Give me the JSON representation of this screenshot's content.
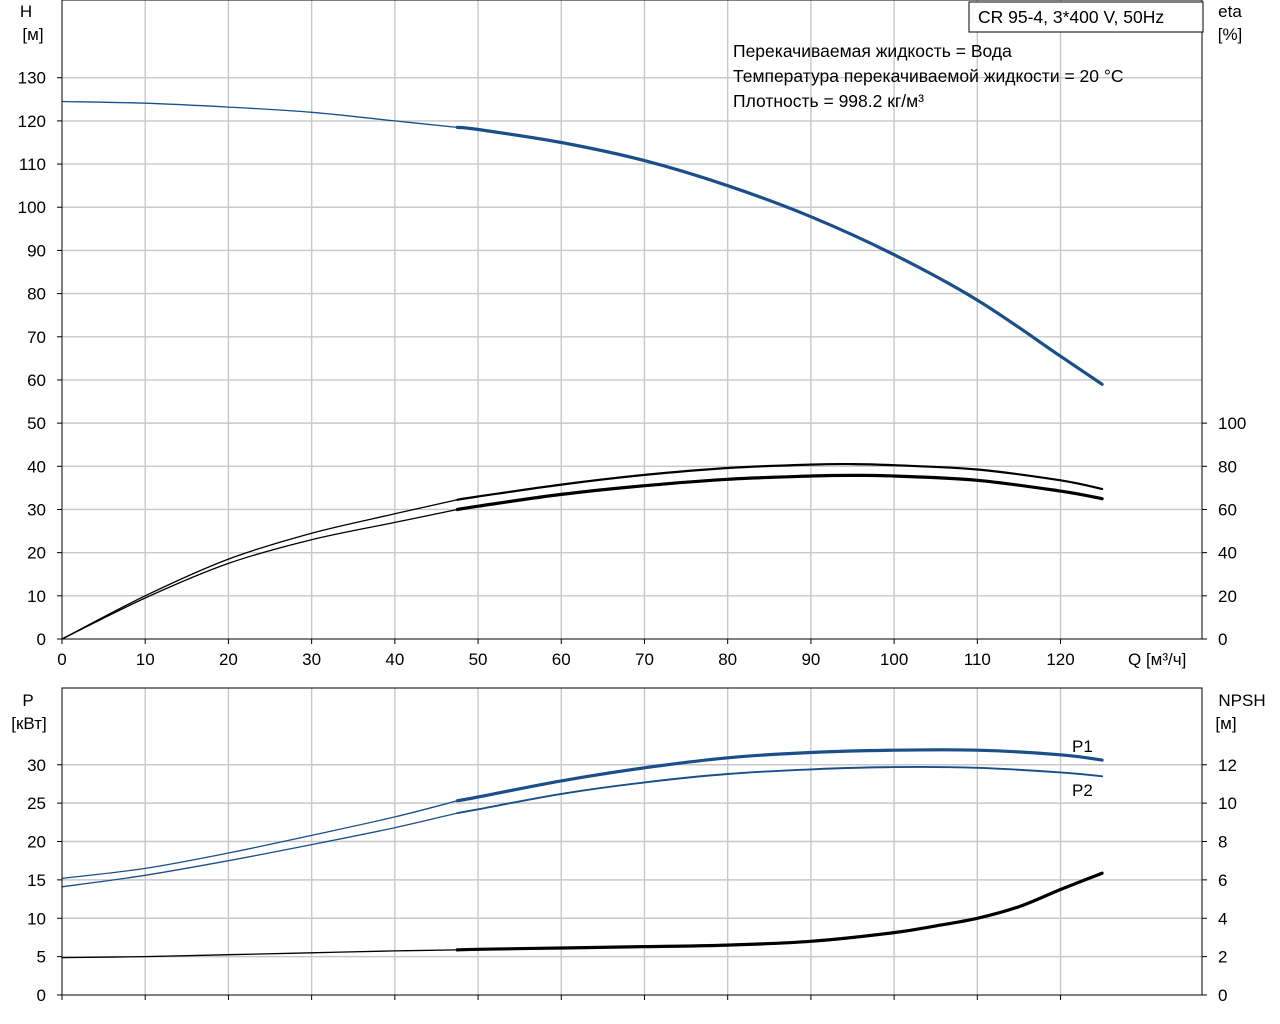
{
  "model": "CR 95-4, 3*400 V, 50Hz",
  "info_lines": [
    "Перекачиваемая жидкость = Вода",
    "Температура перекачиваемой жидкости = 20 °C",
    "Плотность = 998.2 кг/м³"
  ],
  "colors": {
    "blue": "#1a4f8a",
    "black": "#000000",
    "grid": "#c8c8c8"
  },
  "chart_data": [
    {
      "type": "line",
      "axes": {
        "left_label": [
          "H",
          "[м]"
        ],
        "right_label": [
          "eta",
          "[%]"
        ],
        "x_label": "Q [м³/ч]",
        "xlim": [
          0,
          137
        ],
        "left_ylim": [
          0,
          148
        ],
        "right_ylim": [
          0,
          296
        ],
        "x_ticks": [
          0,
          10,
          20,
          30,
          40,
          50,
          60,
          70,
          80,
          90,
          100,
          110,
          120
        ],
        "left_ticks": [
          0,
          10,
          20,
          30,
          40,
          50,
          60,
          70,
          80,
          90,
          100,
          110,
          120,
          130
        ],
        "right_ticks": [
          0,
          20,
          40,
          60,
          80,
          100
        ],
        "grid": true
      },
      "series": [
        {
          "key": "H",
          "axis": "left",
          "color": "blue",
          "width": 3.2,
          "thin_width": 1.3,
          "op_start": 47.5,
          "x": [
            0,
            10,
            20,
            30,
            40,
            47.5,
            50,
            60,
            70,
            80,
            90,
            100,
            110,
            120,
            125
          ],
          "y": [
            124.5,
            124.1,
            123.2,
            122,
            120,
            118.5,
            118,
            115,
            110.8,
            105,
            97.8,
            89,
            78.5,
            65.5,
            59
          ]
        },
        {
          "key": "eta_total",
          "axis": "right",
          "color": "black",
          "width": 3.2,
          "thin_width": 1.3,
          "op_start": 47.5,
          "x": [
            0,
            10,
            20,
            30,
            40,
            47.5,
            50,
            60,
            70,
            80,
            90,
            95,
            100,
            110,
            120,
            125
          ],
          "y": [
            0,
            19,
            35,
            46,
            54,
            60,
            61.5,
            67,
            71,
            74,
            75.5,
            75.8,
            75.5,
            73.5,
            68.5,
            65
          ]
        },
        {
          "key": "eta_pump",
          "axis": "right",
          "color": "black",
          "width": 2.2,
          "thin_width": 1.3,
          "op_start": 47.5,
          "x": [
            0,
            10,
            20,
            30,
            40,
            47.5,
            50,
            60,
            70,
            80,
            90,
            95,
            100,
            110,
            120,
            125
          ],
          "y": [
            0,
            20,
            37,
            49,
            58,
            64.5,
            66,
            71.5,
            76,
            79.2,
            80.8,
            81,
            80.5,
            78.5,
            73.5,
            69.5
          ]
        }
      ]
    },
    {
      "type": "line",
      "axes": {
        "left_label": [
          "P",
          "[кВт]"
        ],
        "right_label": [
          "NPSH",
          "[м]"
        ],
        "xlim": [
          0,
          137
        ],
        "left_ylim": [
          0,
          40
        ],
        "right_ylim": [
          0,
          16
        ],
        "x_ticks": [
          0,
          10,
          20,
          30,
          40,
          50,
          60,
          70,
          80,
          90,
          100,
          110,
          120
        ],
        "left_ticks": [
          0,
          5,
          10,
          15,
          20,
          25,
          30
        ],
        "right_ticks": [
          0,
          2,
          4,
          6,
          8,
          10,
          12
        ],
        "grid": true
      },
      "series": [
        {
          "key": "P1",
          "name": "P1",
          "axis": "left",
          "color": "blue",
          "width": 3.2,
          "thin_width": 1.3,
          "op_start": 47.5,
          "x": [
            0,
            10,
            20,
            30,
            40,
            47.5,
            50,
            60,
            70,
            80,
            90,
            100,
            110,
            120,
            125
          ],
          "y": [
            15.2,
            16.5,
            18.5,
            20.8,
            23.2,
            25.3,
            25.8,
            27.9,
            29.6,
            30.9,
            31.6,
            31.9,
            31.9,
            31.3,
            30.6
          ]
        },
        {
          "key": "P2",
          "name": "P2",
          "axis": "left",
          "color": "blue",
          "width": 1.9,
          "thin_width": 1.3,
          "op_start": 47.5,
          "x": [
            0,
            10,
            20,
            30,
            40,
            47.5,
            50,
            60,
            70,
            80,
            90,
            100,
            110,
            120,
            125
          ],
          "y": [
            14.1,
            15.6,
            17.5,
            19.6,
            21.8,
            23.7,
            24.2,
            26.2,
            27.7,
            28.8,
            29.4,
            29.7,
            29.6,
            29,
            28.5
          ]
        },
        {
          "key": "NPSH",
          "axis": "right",
          "color": "black",
          "width": 3.2,
          "thin_width": 1.3,
          "op_start": 47.5,
          "x": [
            0,
            10,
            20,
            30,
            40,
            47.5,
            50,
            60,
            70,
            80,
            90,
            100,
            105,
            110,
            115,
            120,
            125
          ],
          "y": [
            1.95,
            2.0,
            2.1,
            2.2,
            2.3,
            2.35,
            2.38,
            2.45,
            2.52,
            2.6,
            2.8,
            3.25,
            3.6,
            4.0,
            4.6,
            5.5,
            6.35
          ]
        }
      ]
    }
  ]
}
